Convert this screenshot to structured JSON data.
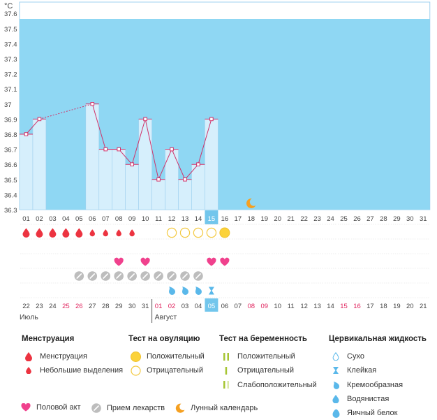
{
  "chart_data": {
    "type": "line",
    "unit": "°C",
    "y_ticks": [
      "36.3",
      "36.4",
      "36.5",
      "36.6",
      "36.7",
      "36.8",
      "36.9",
      "37",
      "37.1",
      "37.2",
      "37.3",
      "37.4",
      "37.5",
      "37.6"
    ],
    "ylim": [
      36.3,
      37.6
    ],
    "days": [
      "01",
      "02",
      "03",
      "04",
      "05",
      "06",
      "07",
      "08",
      "09",
      "10",
      "11",
      "12",
      "13",
      "14",
      "15",
      "16",
      "17",
      "18",
      "19",
      "20",
      "21",
      "22",
      "23",
      "24",
      "25",
      "26",
      "27",
      "28",
      "29",
      "30",
      "31"
    ],
    "current_day": "15",
    "temperatures": [
      36.8,
      36.9,
      null,
      null,
      null,
      37.0,
      36.7,
      36.7,
      36.6,
      36.9,
      36.5,
      36.7,
      36.5,
      36.6,
      36.9,
      null,
      null,
      null,
      null,
      null,
      null,
      null,
      null,
      null,
      null,
      null,
      null,
      null,
      null,
      null,
      null
    ],
    "dates": [
      "22",
      "23",
      "24",
      "25",
      "26",
      "27",
      "28",
      "29",
      "30",
      "31",
      "01",
      "02",
      "03",
      "04",
      "05",
      "06",
      "07",
      "08",
      "09",
      "10",
      "11",
      "12",
      "13",
      "14",
      "15",
      "16",
      "17",
      "18",
      "19",
      "20",
      "21"
    ],
    "date_colors": [
      "n",
      "n",
      "n",
      "w",
      "w",
      "n",
      "n",
      "n",
      "n",
      "n",
      "w",
      "w",
      "n",
      "n",
      "t",
      "n",
      "n",
      "w",
      "w",
      "n",
      "n",
      "n",
      "n",
      "n",
      "w",
      "w",
      "n",
      "n",
      "n",
      "n",
      "n"
    ],
    "month_labels": [
      {
        "label": "Июль",
        "index": 0
      },
      {
        "label": "Август",
        "index": 10
      }
    ],
    "menstruation": [
      "heavy",
      "heavy",
      "heavy",
      "heavy",
      "heavy",
      "light",
      "light",
      "light",
      "light",
      null,
      null,
      null,
      null,
      null,
      null,
      null,
      null,
      null,
      null,
      null,
      null,
      null,
      null,
      null,
      null,
      null,
      null,
      null,
      null,
      null,
      null
    ],
    "ovulation_test": [
      null,
      null,
      null,
      null,
      null,
      null,
      null,
      null,
      null,
      null,
      null,
      "negative",
      "negative",
      "negative",
      "negative",
      "positive",
      null,
      null,
      null,
      null,
      null,
      null,
      null,
      null,
      null,
      null,
      null,
      null,
      null,
      null,
      null
    ],
    "intercourse": [
      null,
      null,
      null,
      null,
      null,
      null,
      null,
      "yes",
      null,
      "yes",
      null,
      null,
      null,
      null,
      "yes",
      "yes",
      null,
      null,
      null,
      null,
      null,
      null,
      null,
      null,
      null,
      null,
      null,
      null,
      null,
      null,
      null
    ],
    "medication": [
      null,
      null,
      null,
      null,
      "yes",
      "yes",
      "yes",
      "yes",
      "yes",
      "yes",
      "yes",
      "yes",
      "yes",
      "yes",
      null,
      null,
      null,
      null,
      null,
      null,
      null,
      null,
      null,
      null,
      null,
      null,
      null,
      null,
      null,
      null,
      null
    ],
    "cervical_fluid": [
      null,
      null,
      null,
      null,
      null,
      null,
      null,
      null,
      null,
      null,
      null,
      "creamy",
      "creamy",
      "creamy",
      "sticky",
      null,
      null,
      null,
      null,
      null,
      null,
      null,
      null,
      null,
      null,
      null,
      null,
      null,
      null,
      null,
      null
    ],
    "moon_day": "18"
  },
  "legend": {
    "menstruation": {
      "title": "Менструация",
      "items": [
        "Менструация",
        "Небольшие выделения"
      ]
    },
    "ovulation": {
      "title": "Тест на овуляцию",
      "items": [
        "Положительный",
        "Отрицательный"
      ]
    },
    "pregnancy": {
      "title": "Тест на беременность",
      "items": [
        "Положительный",
        "Отрицательный",
        "Слабоположительный"
      ]
    },
    "cervical": {
      "title": "Цервикальная жидкость",
      "items": [
        "Сухо",
        "Клейкая",
        "Кремообразная",
        "Водянистая",
        "Яичный белок"
      ]
    },
    "bottom": [
      "Половой акт",
      "Прием лекарств",
      "Лунный календарь"
    ]
  },
  "colors": {
    "sky": "#8fd7f3",
    "bar": "#d6effc",
    "bar_edge": "#9fd0ef",
    "line": "#d0336a",
    "menstruation": "#ec3340",
    "ovulation_pos": "#fbd23a",
    "ovulation_neg": "#f3c941",
    "heart": "#f0418d",
    "pill": "#bdbdbd",
    "drop": "#5ab8ea",
    "moon": "#f5a021",
    "weekend": "#e0245e",
    "pregnancy": "#a6c533",
    "highlight": "#72c6ec"
  }
}
